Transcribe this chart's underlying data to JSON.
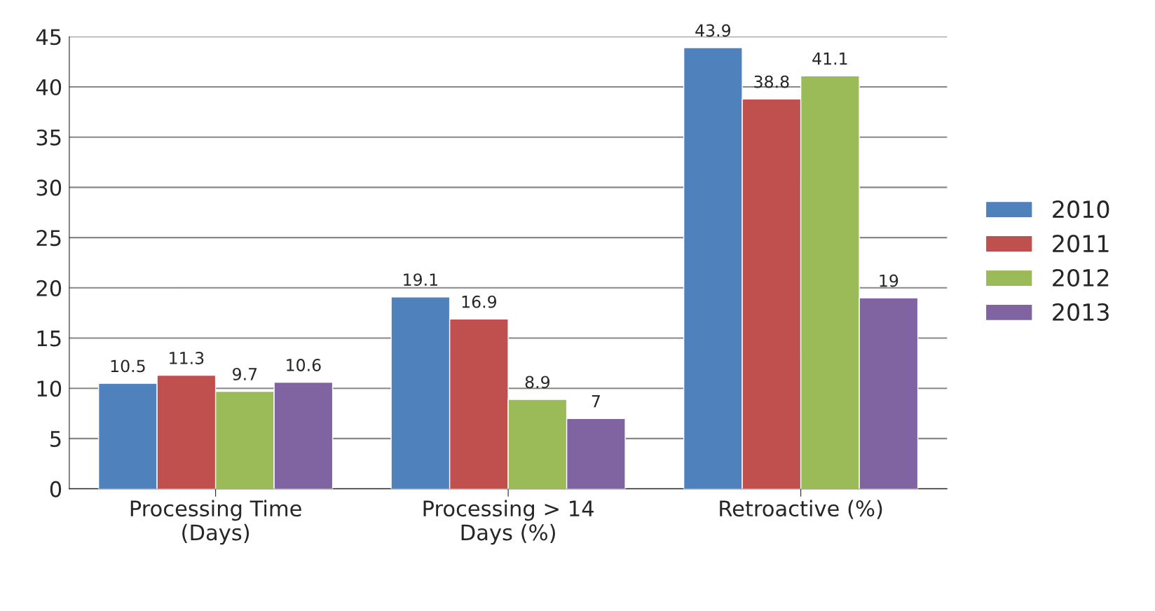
{
  "chart_data": {
    "type": "bar",
    "categories": [
      "Processing Time\n(Days)",
      "Processing > 14\nDays (%)",
      "Retroactive (%)"
    ],
    "series": [
      {
        "name": "2010",
        "color": "#4f81bd",
        "values": [
          10.5,
          19.1,
          43.9
        ]
      },
      {
        "name": "2011",
        "color": "#c0504d",
        "values": [
          11.3,
          16.9,
          38.8
        ]
      },
      {
        "name": "2012",
        "color": "#9bbb59",
        "values": [
          9.7,
          8.9,
          41.1
        ]
      },
      {
        "name": "2013",
        "color": "#8064a2",
        "values": [
          10.6,
          7,
          19
        ]
      }
    ],
    "ylim": [
      0,
      45
    ],
    "yticks": [
      0,
      5,
      10,
      15,
      20,
      25,
      30,
      35,
      40,
      45
    ],
    "grid": "y",
    "legend": "right",
    "data_labels": true
  }
}
